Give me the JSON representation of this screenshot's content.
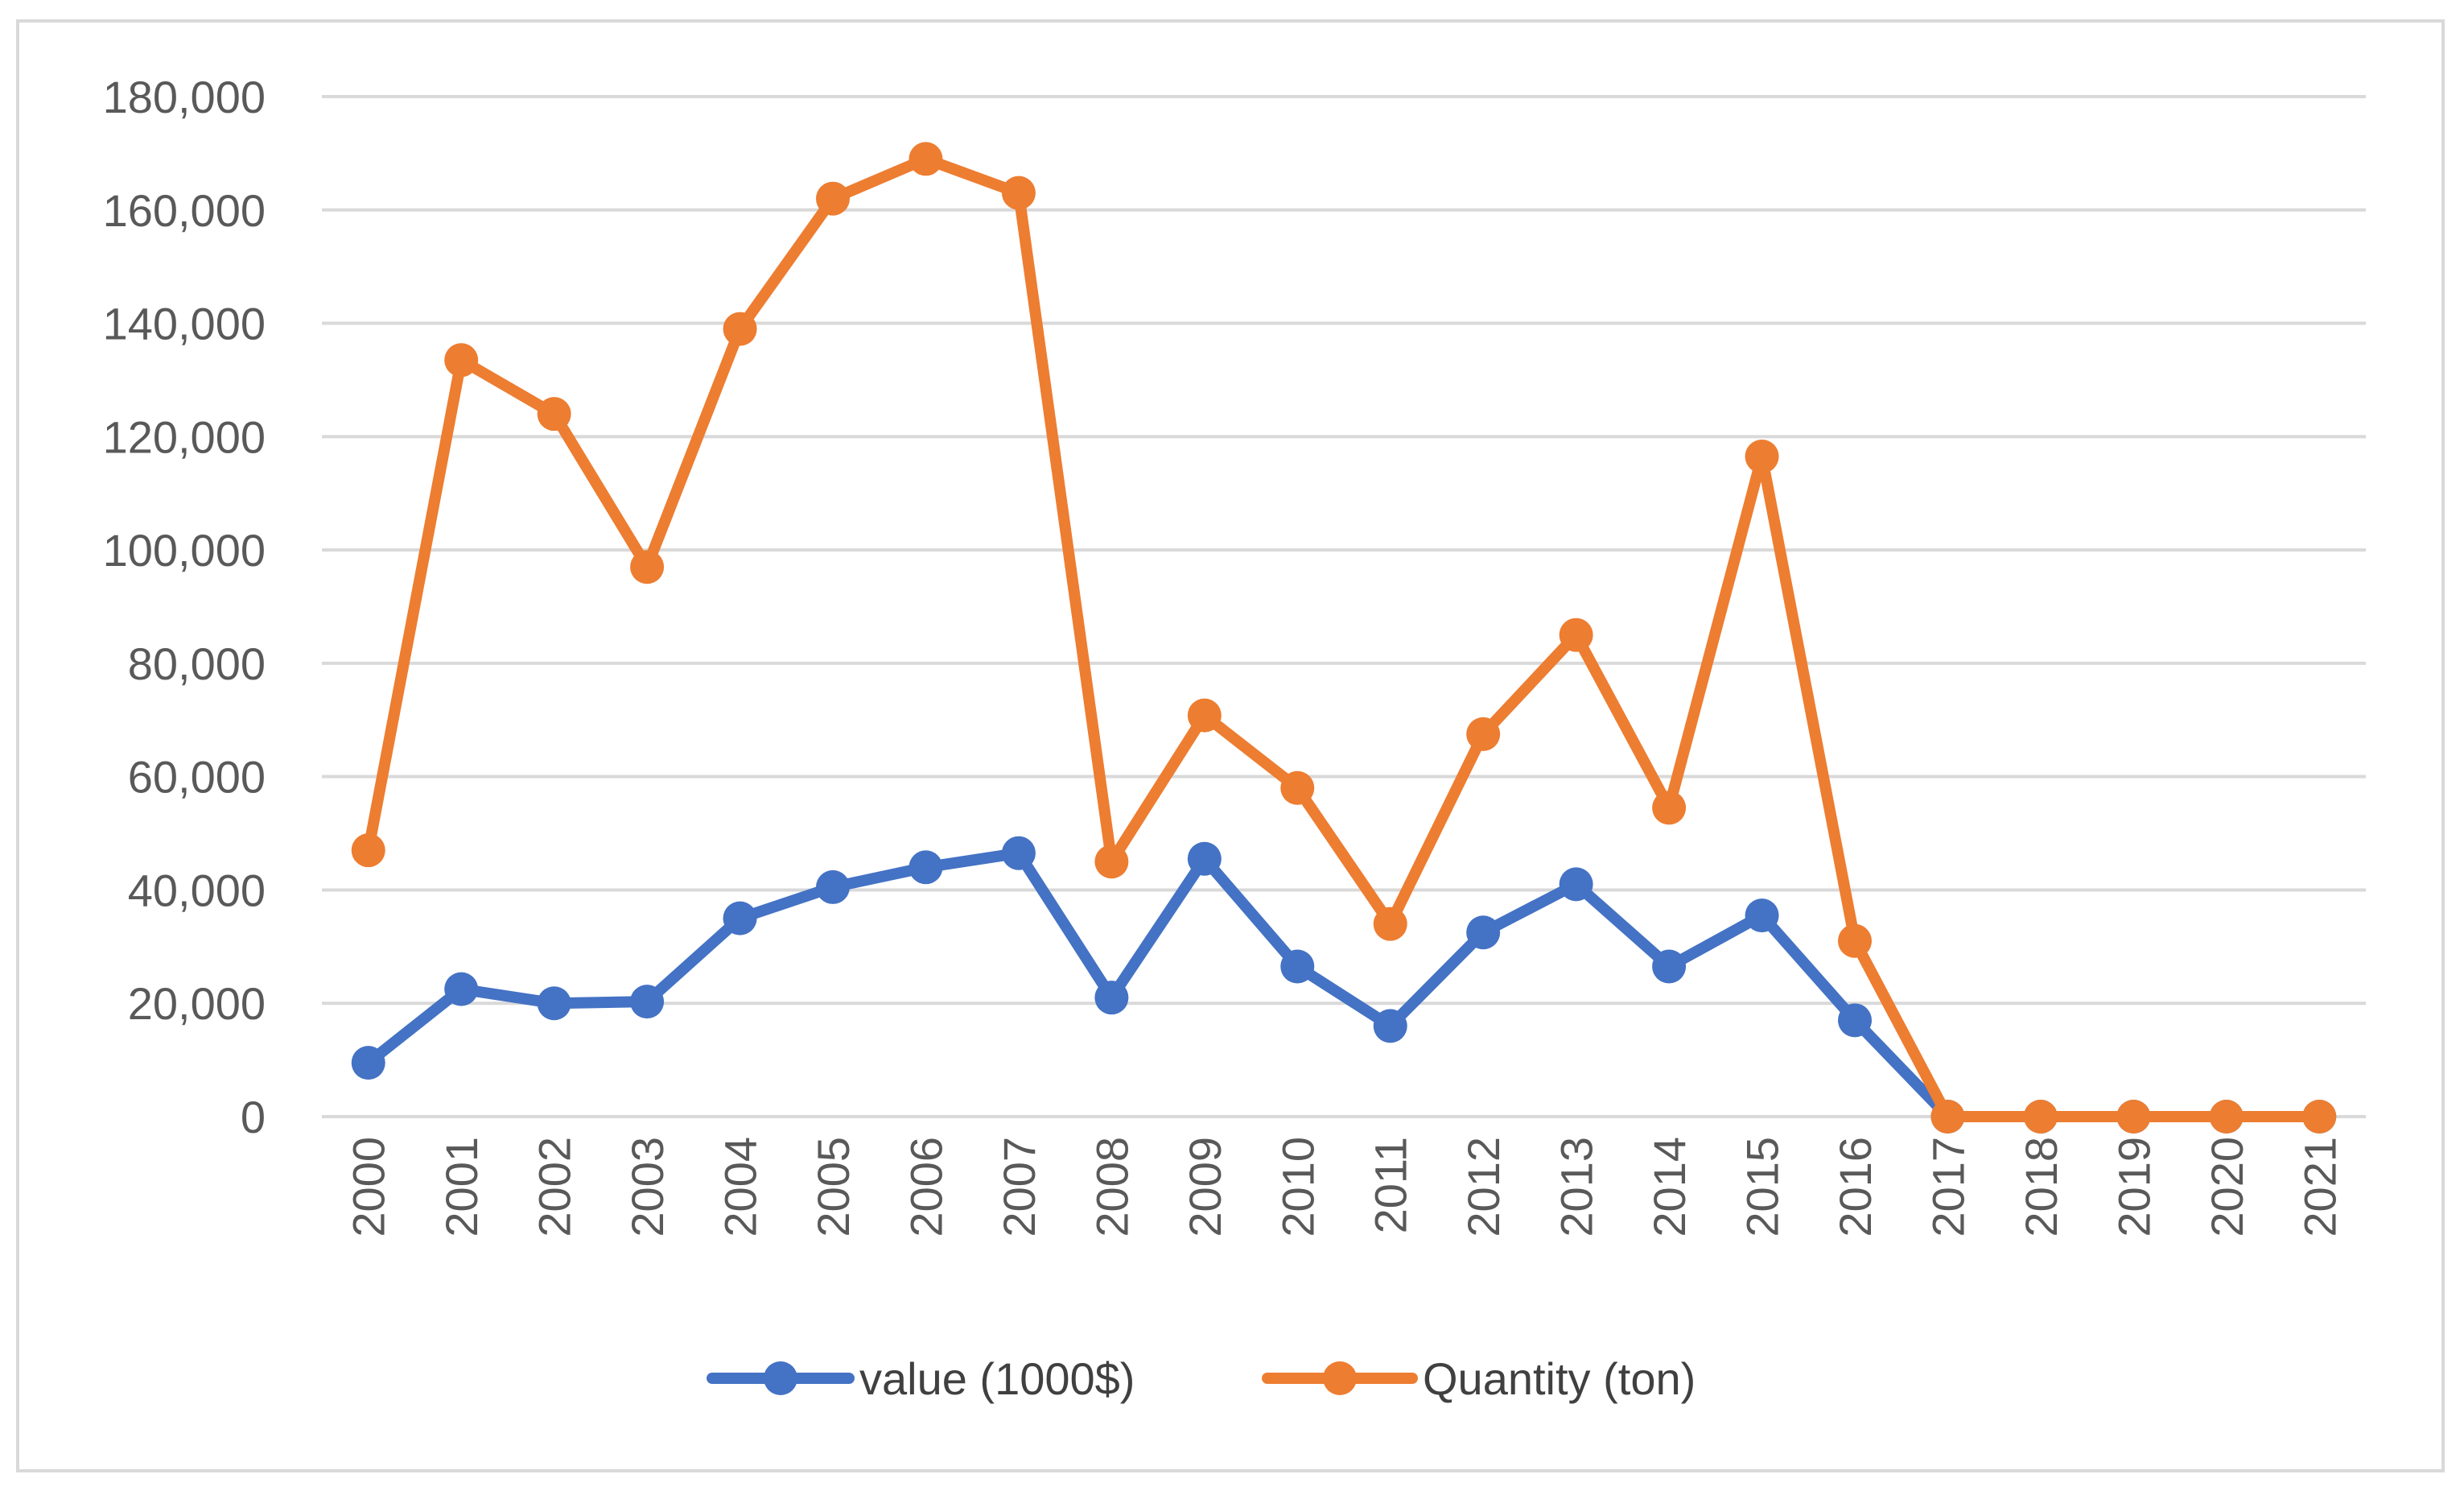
{
  "chart_data": {
    "type": "line",
    "title": "",
    "xlabel": "",
    "ylabel": "",
    "ylim": [
      0,
      180000
    ],
    "yticks": [
      0,
      20000,
      40000,
      60000,
      80000,
      100000,
      120000,
      140000,
      160000,
      180000
    ],
    "ytick_labels": [
      "0",
      "20,000",
      "40,000",
      "60,000",
      "80,000",
      "100,000",
      "120,000",
      "140,000",
      "160,000",
      "180,000"
    ],
    "grid": true,
    "legend_position": "bottom",
    "categories": [
      "2000",
      "2001",
      "2002",
      "2003",
      "2004",
      "2005",
      "2006",
      "2007",
      "2008",
      "2009",
      "2010",
      "2011",
      "2012",
      "2013",
      "2014",
      "2015",
      "2016",
      "2017",
      "2018",
      "2019",
      "2020",
      "2021"
    ],
    "series": [
      {
        "name": "value (1000$)",
        "color": "#4472c4",
        "values": [
          9500,
          22500,
          20000,
          20300,
          35000,
          40500,
          44000,
          46500,
          21000,
          45500,
          26500,
          16000,
          32500,
          41000,
          26500,
          35500,
          17000,
          0,
          0,
          0,
          0,
          0
        ]
      },
      {
        "name": "Quantity (ton)",
        "color": "#ed7d31",
        "values": [
          47000,
          133500,
          124000,
          97000,
          139000,
          162000,
          169000,
          163000,
          45000,
          70800,
          58000,
          34000,
          67500,
          85000,
          54500,
          116500,
          31000,
          0,
          0,
          0,
          0,
          0
        ]
      }
    ]
  },
  "colors": {
    "gridline": "#d9d9d9",
    "axis_line": "#d9d9d9",
    "frame_border": "#d9d9d9",
    "tick_text": "#595959",
    "legend_text": "#404040"
  }
}
